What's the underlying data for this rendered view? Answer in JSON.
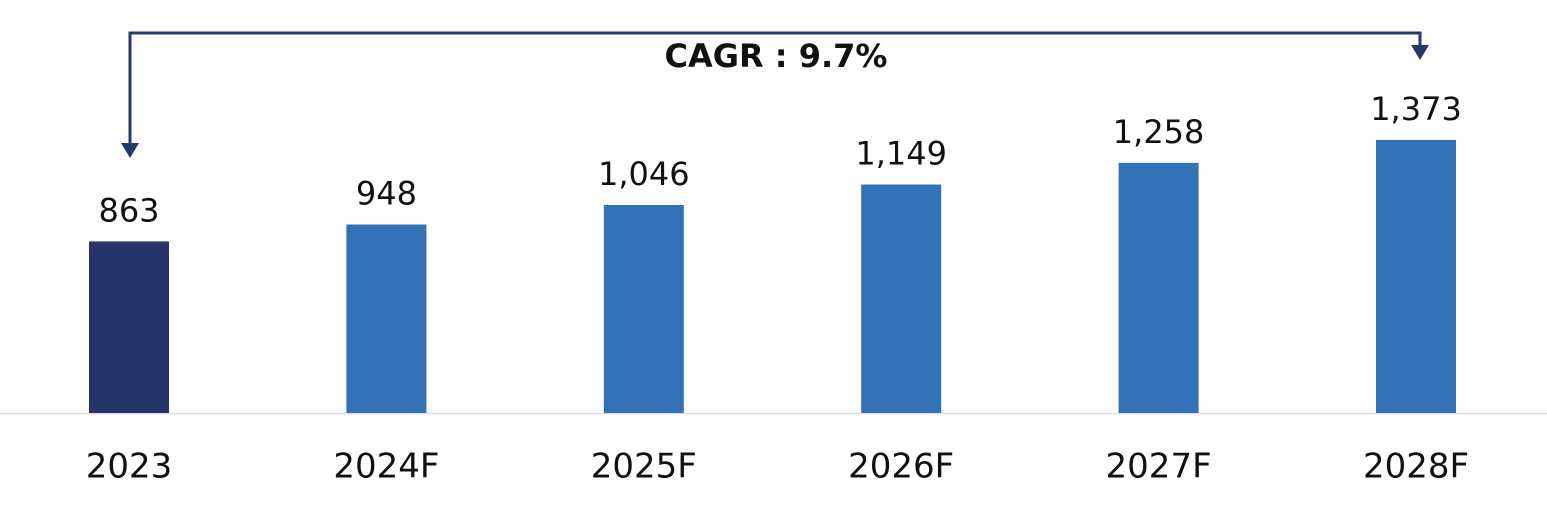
{
  "chart_data": {
    "type": "bar",
    "annotation": "CAGR : 9.7%",
    "categories": [
      "2023",
      "2024F",
      "2025F",
      "2026F",
      "2027F",
      "2028F"
    ],
    "values": [
      863,
      948,
      1046,
      1149,
      1258,
      1373
    ],
    "value_labels": [
      "863",
      "948",
      "1,046",
      "1,149",
      "1,258",
      "1,373"
    ],
    "colors": [
      "#26356a",
      "#3172b8",
      "#3172b8",
      "#3172b8",
      "#3172b8",
      "#3172b8"
    ]
  }
}
